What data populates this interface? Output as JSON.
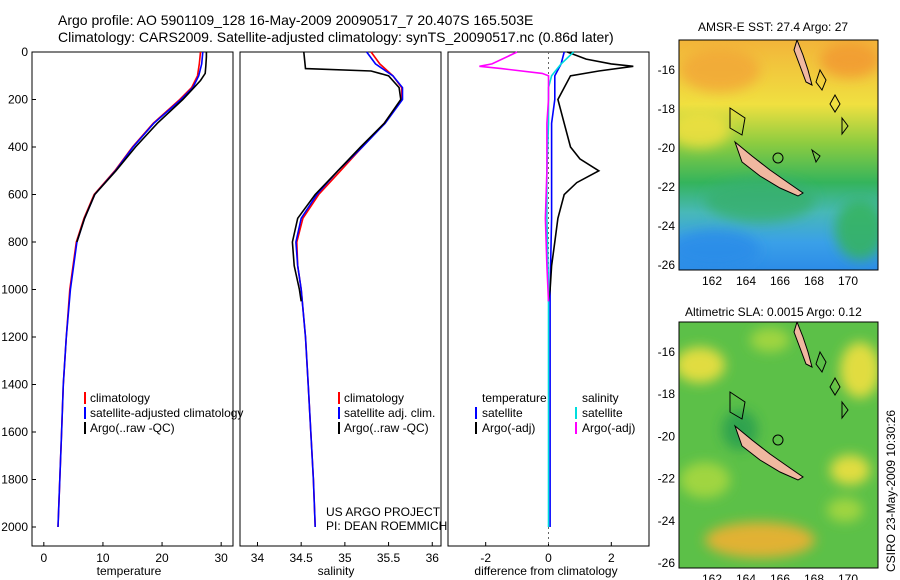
{
  "header": {
    "line1": "Argo profile: AO 5901109_128 16-May-2009 20090517_7 20.407S 165.503E",
    "line2": "Climatology: CARS2009. Satellite-adjusted climatology: synTS_20090517.nc (0.86d later)"
  },
  "colors": {
    "climatology": "#ff0000",
    "satellite": "#0000ff",
    "argo": "#000000",
    "salinity_sat": "#00dddd",
    "salinity_argo": "#ff00ff"
  },
  "chart_data": [
    {
      "type": "line",
      "xlabel": "temperature",
      "ylabel": "",
      "xlim": [
        -2,
        32
      ],
      "ylim": [
        2080,
        0
      ],
      "xticks": [
        0,
        10,
        20,
        30
      ],
      "yticks": [
        0,
        200,
        400,
        600,
        800,
        1000,
        1200,
        1400,
        1600,
        1800,
        2000
      ],
      "legend": [
        "climatology",
        "satellite-adjusted climatology",
        "Argo(..raw -QC)"
      ],
      "series": [
        {
          "name": "climatology",
          "depth": [
            0,
            50,
            100,
            150,
            200,
            300,
            400,
            500,
            600,
            700,
            800,
            1000,
            1200,
            1400,
            1600,
            1800,
            2000
          ],
          "values": [
            26.5,
            26.3,
            26.0,
            25.0,
            23.0,
            18.5,
            15.0,
            12.0,
            8.5,
            6.8,
            5.5,
            4.4,
            3.8,
            3.3,
            3.0,
            2.7,
            2.4
          ]
        },
        {
          "name": "satellite-adjusted climatology",
          "depth": [
            0,
            50,
            100,
            150,
            200,
            300,
            400,
            500,
            600,
            700,
            800,
            1000,
            1200,
            1400,
            1600,
            1800,
            2000
          ],
          "values": [
            26.9,
            26.7,
            26.2,
            25.2,
            23.2,
            18.6,
            15.1,
            12.1,
            8.6,
            6.9,
            5.6,
            4.5,
            3.8,
            3.3,
            3.0,
            2.7,
            2.4
          ]
        },
        {
          "name": "Argo(..raw -QC)",
          "depth": [
            0,
            20,
            60,
            90,
            120,
            150,
            200,
            300,
            400,
            500,
            600,
            700,
            800
          ],
          "values": [
            27.5,
            27.5,
            27.4,
            27.3,
            26.5,
            25.4,
            23.5,
            19.2,
            15.5,
            12.2,
            8.6,
            6.9,
            5.6
          ]
        }
      ]
    },
    {
      "type": "line",
      "xlabel": "salinity",
      "xlim": [
        33.8,
        36.1
      ],
      "ylim": [
        2080,
        0
      ],
      "xticks": [
        34,
        34.5,
        35,
        35.5,
        36
      ],
      "legend": [
        "climatology",
        "satellite adj. clim.",
        "Argo(..raw -QC)"
      ],
      "series": [
        {
          "name": "climatology",
          "depth": [
            0,
            50,
            100,
            150,
            200,
            300,
            400,
            500,
            600,
            700,
            800,
            900,
            1000,
            1200,
            1400,
            1600,
            1800,
            2000
          ],
          "values": [
            35.3,
            35.4,
            35.55,
            35.65,
            35.65,
            35.45,
            35.2,
            34.95,
            34.7,
            34.52,
            34.45,
            34.46,
            34.5,
            34.55,
            34.58,
            34.61,
            34.64,
            34.66
          ]
        },
        {
          "name": "satellite adj. clim.",
          "depth": [
            0,
            50,
            100,
            150,
            200,
            300,
            400,
            500,
            600,
            700,
            800,
            900,
            1000,
            1200,
            1400,
            1600,
            1800,
            2000
          ],
          "values": [
            35.25,
            35.35,
            35.55,
            35.66,
            35.66,
            35.46,
            35.2,
            34.92,
            34.68,
            34.5,
            34.44,
            34.46,
            34.5,
            34.55,
            34.58,
            34.61,
            34.64,
            34.66
          ]
        },
        {
          "name": "Argo(..raw -QC)",
          "depth": [
            0,
            70,
            80,
            100,
            150,
            200,
            300,
            400,
            500,
            600,
            700,
            800,
            900,
            1000,
            1050
          ],
          "values": [
            34.53,
            34.55,
            35.3,
            35.5,
            35.62,
            35.64,
            35.45,
            35.18,
            34.92,
            34.66,
            34.46,
            34.4,
            34.42,
            34.48,
            34.5
          ]
        }
      ]
    },
    {
      "type": "line",
      "xlabel": "difference from climatology",
      "xlim": [
        -3.2,
        3.2
      ],
      "ylim": [
        2080,
        0
      ],
      "xticks": [
        -2,
        0,
        2
      ],
      "legend": [
        "temperature",
        "satellite",
        "Argo(-adj)",
        "salinity",
        "satellite",
        "Argo(-adj)"
      ],
      "series": [
        {
          "name": "temperature satellite",
          "depth": [
            0,
            50,
            100,
            200,
            300,
            400,
            500,
            700,
            1000,
            1500,
            2000
          ],
          "values": [
            0.5,
            0.4,
            0.2,
            0.2,
            0.1,
            0.1,
            0.1,
            0.1,
            0.05,
            0.05,
            0.05
          ]
        },
        {
          "name": "temperature Argo(-adj)",
          "depth": [
            0,
            30,
            50,
            60,
            80,
            100,
            150,
            200,
            300,
            400,
            450,
            500,
            550,
            600,
            700,
            800,
            900,
            1000,
            1050
          ],
          "values": [
            0.6,
            1.2,
            2.0,
            2.7,
            1.6,
            0.7,
            0.5,
            0.3,
            0.5,
            0.7,
            1.0,
            1.6,
            0.9,
            0.5,
            0.3,
            0.2,
            0.1,
            0.05,
            0.0
          ]
        },
        {
          "name": "salinity satellite",
          "depth": [
            0,
            50,
            100,
            150,
            200,
            300,
            500,
            700,
            1000,
            1500,
            2000
          ],
          "values": [
            0.8,
            0.4,
            0.1,
            0.0,
            0.0,
            0.0,
            -0.05,
            -0.05,
            0.0,
            0.0,
            0.0
          ]
        },
        {
          "name": "salinity Argo(-adj)",
          "depth": [
            0,
            50,
            60,
            70,
            90,
            100,
            150,
            200,
            300,
            500,
            700,
            900,
            1050
          ],
          "values": [
            -1.0,
            -1.8,
            -2.2,
            -1.5,
            -0.2,
            0.0,
            0.0,
            0.0,
            -0.05,
            -0.05,
            -0.1,
            -0.05,
            0.0
          ]
        }
      ]
    }
  ],
  "panel2_note": {
    "line1": "US ARGO PROJECT",
    "line2": "PI: DEAN ROEMMICH"
  },
  "maps": [
    {
      "title": "AMSR-E SST: 27.4 Argo: 27",
      "xticks": [
        "162",
        "164",
        "166",
        "168",
        "170"
      ],
      "yticks": [
        "-16",
        "-18",
        "-20",
        "-22",
        "-24",
        "-26"
      ]
    },
    {
      "title": "Altimetric SLA: 0.0015 Argo: 0.12",
      "xticks": [
        "162",
        "164",
        "166",
        "168",
        "170"
      ],
      "yticks": [
        "-16",
        "-18",
        "-20",
        "-22",
        "-24",
        "-26"
      ]
    }
  ],
  "side_stamp": "CSIRO 23-May-2009 10:30:26"
}
